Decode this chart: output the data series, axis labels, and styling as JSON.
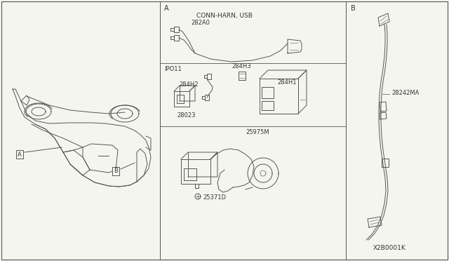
{
  "bg_color": "#f5f5f0",
  "line_color": "#555555",
  "text_color": "#333333",
  "fig_width": 6.4,
  "fig_height": 3.72,
  "dpi": 100,
  "labels": {
    "A_section": "A",
    "B_section": "B",
    "conn_harn": "CONN-HARN, USB",
    "282A0": "282A0",
    "IPO11": "IPO11",
    "284H3": "284H3",
    "284H2": "284H2",
    "284H1": "284H1",
    "28023": "28023",
    "25975M": "25975M",
    "25371D": "25371D",
    "28242MA": "28242MA",
    "X2B0001K": "X2B0001K"
  }
}
